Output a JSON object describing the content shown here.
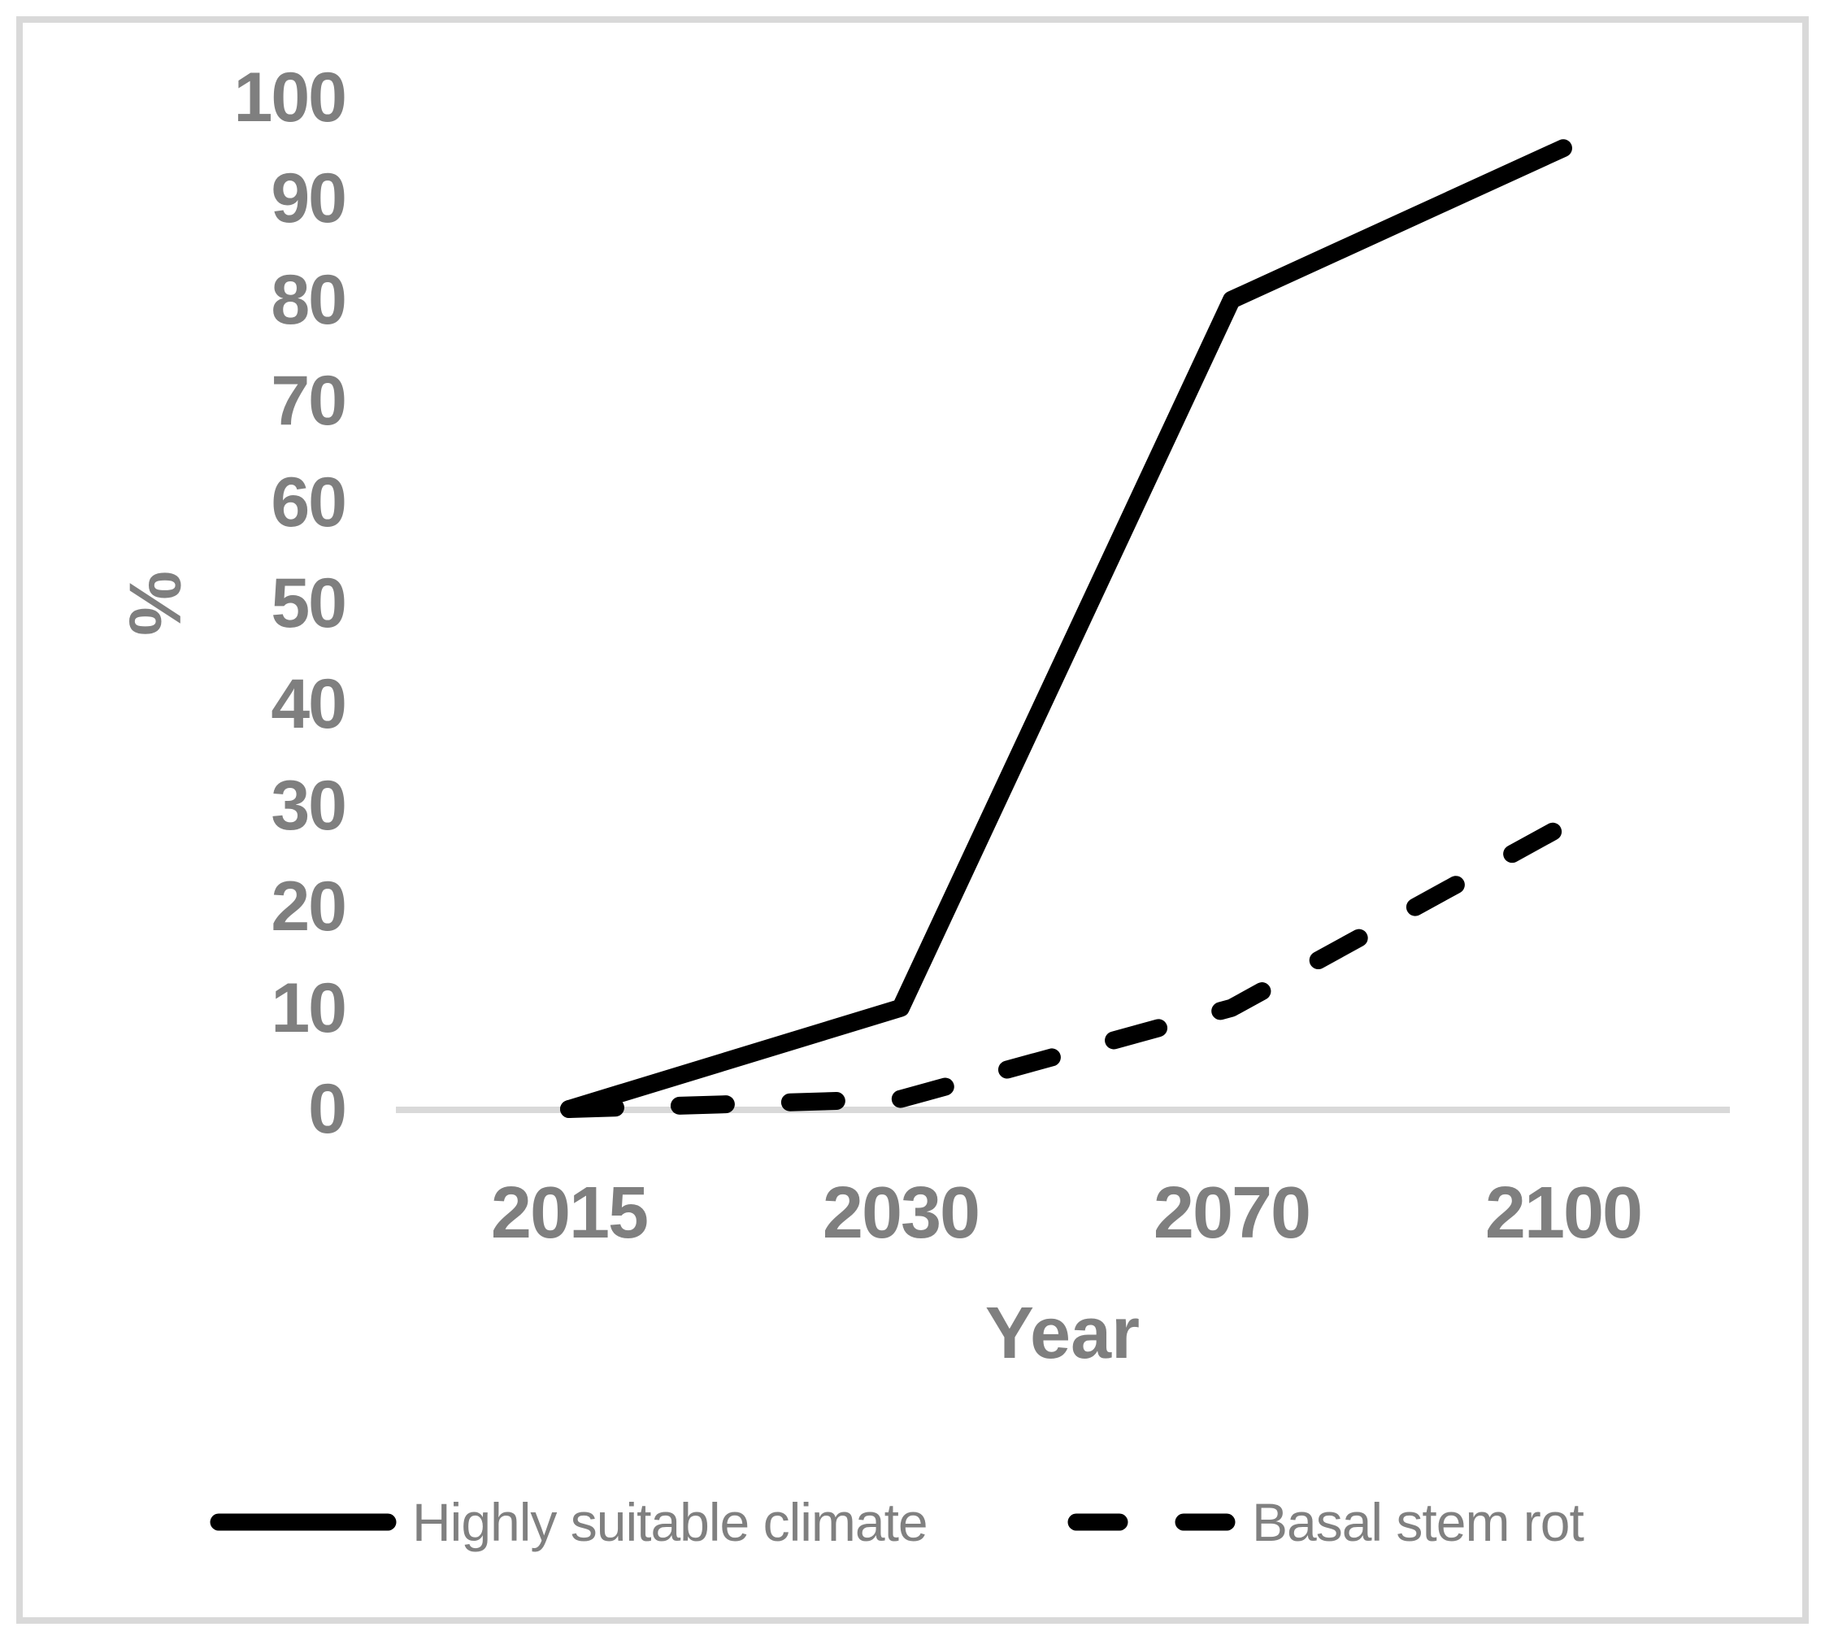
{
  "chart_data": {
    "type": "line",
    "categories": [
      "2015",
      "2030",
      "2070",
      "2100"
    ],
    "series": [
      {
        "name": "Highly suitable climate",
        "values": [
          0,
          10,
          80,
          95
        ],
        "style": "solid",
        "color": "#000000"
      },
      {
        "name": "Basal stem rot",
        "values": [
          0,
          1,
          10,
          28
        ],
        "style": "dashed",
        "color": "#000000"
      }
    ],
    "title": "",
    "xlabel": "Year",
    "ylabel": "%",
    "ylim": [
      0,
      100
    ],
    "y_ticks": [
      0,
      10,
      20,
      30,
      40,
      50,
      60,
      70,
      80,
      90,
      100
    ],
    "grid": "off",
    "legend_position": "bottom",
    "axis_line_color": "#d9d9d9",
    "label_color": "#7f7f7f",
    "frame_border_color": "#d9d9d9"
  }
}
